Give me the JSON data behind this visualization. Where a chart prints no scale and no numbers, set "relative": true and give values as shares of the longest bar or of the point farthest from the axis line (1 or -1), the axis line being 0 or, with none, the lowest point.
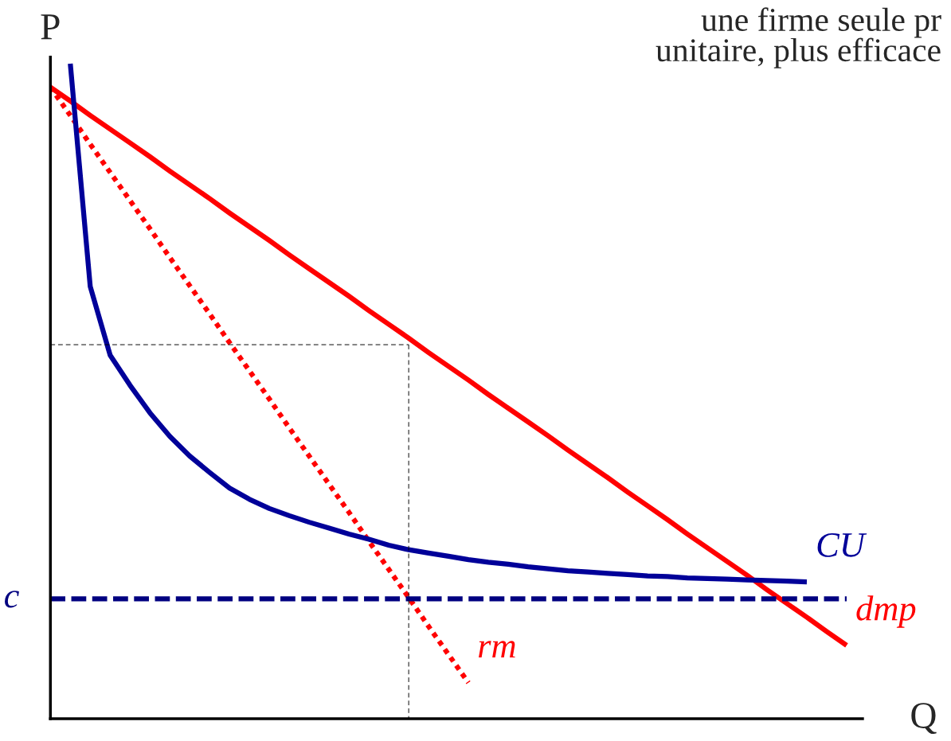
{
  "chart_data": {
    "type": "line",
    "relative": true,
    "xlabel": "Q",
    "ylabel": "P",
    "annotations": [
      "une firme seule pr\nunitaire, plus efficace"
    ],
    "categories": [
      null,
      null,
      null,
      null,
      null,
      null,
      null,
      null,
      null,
      null,
      null,
      null,
      null,
      null,
      null,
      null,
      null,
      null,
      null,
      null,
      null,
      null,
      null,
      null,
      null,
      null,
      null,
      null,
      null,
      null,
      null,
      null,
      null,
      null,
      null,
      null,
      null,
      null,
      null,
      null,
      null
    ],
    "series": [
      {
        "name": "dmp",
        "color": "#ff0000",
        "line_style": "solid",
        "values": [
          0.964,
          0.943,
          0.921,
          0.9,
          0.879,
          0.858,
          0.836,
          0.815,
          0.794,
          0.772,
          0.751,
          0.73,
          0.708,
          0.687,
          0.666,
          0.645,
          0.623,
          0.602,
          0.581,
          0.559,
          0.538,
          0.517,
          0.495,
          0.474,
          0.453,
          0.432,
          0.41,
          0.389,
          0.368,
          0.346,
          0.325,
          0.304,
          0.282,
          0.261,
          0.24,
          0.219,
          0.197,
          0.176,
          0.155,
          0.133,
          0.112
        ]
      },
      {
        "name": "rm",
        "color": "#ff0000",
        "line_style": "dotted",
        "values": [
          0.964,
          0.921,
          0.877,
          0.834,
          0.791,
          0.748,
          0.704,
          0.661,
          0.618,
          0.574,
          0.531,
          0.488,
          0.444,
          0.401,
          0.358,
          0.315,
          0.271,
          0.228,
          0.185,
          0.141,
          0.098,
          0.055,
          null,
          null,
          null,
          null,
          null,
          null,
          null,
          null,
          null,
          null,
          null,
          null,
          null,
          null,
          null,
          null,
          null,
          null,
          null
        ]
      },
      {
        "name": "CU",
        "color": "#000099",
        "line_style": "solid",
        "values": [
          null,
          1.0,
          0.66,
          0.555,
          0.509,
          0.467,
          0.431,
          0.401,
          0.376,
          0.352,
          0.335,
          0.321,
          0.31,
          0.3,
          0.291,
          0.282,
          0.274,
          0.265,
          0.258,
          0.253,
          0.248,
          0.243,
          0.239,
          0.236,
          0.232,
          0.229,
          0.226,
          0.224,
          0.222,
          0.22,
          0.218,
          0.217,
          0.215,
          0.214,
          0.213,
          0.212,
          0.211,
          0.21,
          0.209,
          null,
          null
        ]
      },
      {
        "name": "c",
        "color": "#000080",
        "line_style": "dashed",
        "values": [
          0.183,
          0.183,
          0.183,
          0.183,
          0.183,
          0.183,
          0.183,
          0.183,
          0.183,
          0.183,
          0.183,
          0.183,
          0.183,
          0.183,
          0.183,
          0.183,
          0.183,
          0.183,
          0.183,
          0.183,
          0.183,
          0.183,
          0.183,
          0.183,
          0.183,
          0.183,
          0.183,
          0.183,
          0.183,
          0.183,
          0.183,
          0.183,
          0.183,
          0.183,
          0.183,
          0.183,
          0.183,
          0.183,
          0.183,
          0.183,
          0.183
        ]
      },
      {
        "color": "#000000",
        "line_style": "dashed",
        "values": [
          0.571,
          0.571,
          0.571,
          0.571,
          0.571,
          0.571,
          0.571,
          0.571,
          0.571,
          0.571,
          0.571,
          0.571,
          0.571,
          0.571,
          0.571,
          0.571,
          0.571,
          0.571,
          0.571,
          null,
          null,
          null,
          null,
          null,
          null,
          null,
          null,
          null,
          null,
          null,
          null,
          null,
          null,
          null,
          null,
          null,
          null,
          null,
          null,
          null,
          null
        ]
      }
    ]
  }
}
